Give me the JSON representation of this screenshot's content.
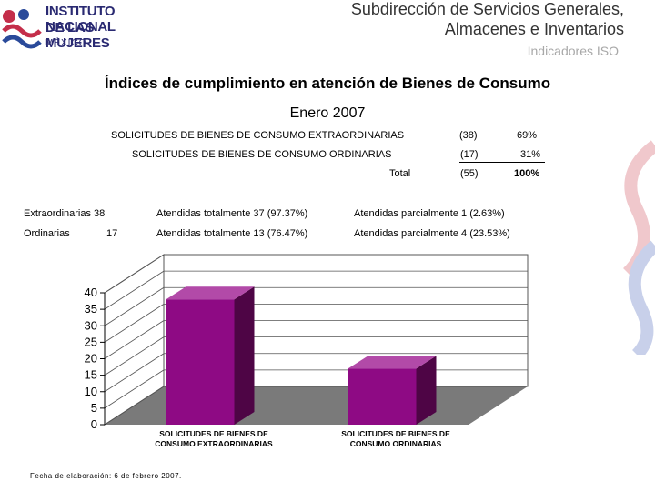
{
  "logo": {
    "line1": "INSTITUTO NACIONAL",
    "line2": "DE LAS MUJERES",
    "line3": "MÉXICO"
  },
  "header": {
    "line1": "Subdirección de Servicios Generales,",
    "line2": "Almacenes e Inventarios",
    "line3": "Indicadores ISO"
  },
  "title": "Índices de cumplimiento en atención de Bienes de Consumo",
  "period": "Enero 2007",
  "summary": {
    "rows": [
      {
        "label": "SOLICITUDES DE BIENES DE CONSUMO EXTRAORDINARIAS",
        "count": "(38)",
        "pct": "69%"
      },
      {
        "label": "SOLICITUDES DE BIENES DE CONSUMO ORDINARIAS",
        "count": "(17)",
        "pct": "31%"
      }
    ],
    "total": {
      "label": "Total",
      "count": "(55)",
      "pct": "100%"
    }
  },
  "attention": {
    "row1": {
      "type": "Extraordinarias 38",
      "total": "Atendidas totalmente 37 (97.37%)",
      "partial": "Atendidas parcialmente 1 (2.63%)"
    },
    "row2": {
      "type": "Ordinarias",
      "count": "17",
      "total": "Atendidas totalmente 13 (76.47%)",
      "partial": "Atendidas parcialmente 4 (23.53%)"
    }
  },
  "chart_data": {
    "type": "bar",
    "categories": [
      "SOLICITUDES DE BIENES DE CONSUMO EXTRAORDINARIAS",
      "SOLICITUDES DE BIENES DE CONSUMO ORDINARIAS"
    ],
    "category_lines": [
      [
        "SOLICITUDES DE BIENES DE",
        "CONSUMO EXTRAORDINARIAS"
      ],
      [
        "SOLICITUDES DE BIENES DE",
        "CONSUMO ORDINARIAS"
      ]
    ],
    "values": [
      38,
      17
    ],
    "ylim": [
      0,
      40
    ],
    "yticks": [
      0,
      5,
      10,
      15,
      20,
      25,
      30,
      35,
      40
    ],
    "grid": true,
    "legend": "none",
    "colors": {
      "bar_front": "#8e0a84",
      "bar_side": "#4e0545",
      "bar_top": "#b24aa8",
      "floor": "#7a7a7a",
      "wall": "#ffffff"
    }
  },
  "footer": "Fecha de elaboración: 6 de febrero 2007."
}
